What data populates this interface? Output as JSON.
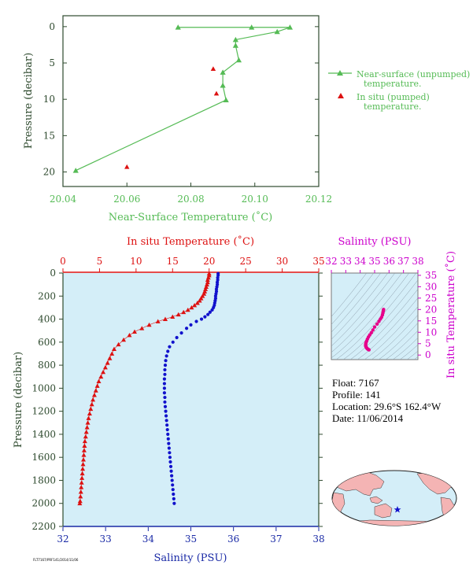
{
  "colors": {
    "near_surface": "#55bb55",
    "insitu": "#dd1111",
    "salinity": "#1111cc",
    "salinity_axis": "#1a2aa6",
    "magenta": "#cc00cc",
    "panel_bg": "#d4eef8",
    "axis_dark": "#2e4a2e",
    "land": "#f4b4b4",
    "ocean": "#d4eef8"
  },
  "float_info": {
    "float": "Float:  7167",
    "profile": "Profile:  141",
    "location": "Location:  29.6°S  162.4°W",
    "date": "Date:  11/06/2014"
  },
  "file_id": "FLT7167/PRF141/2014/11/06",
  "chart_data": [
    {
      "type": "line",
      "id": "near_surface",
      "xlabel": "Near-Surface Temperature (˚C)",
      "ylabel": "Pressure (decibar)",
      "xlim": [
        20.04,
        20.12
      ],
      "ylim": [
        22,
        -1.5
      ],
      "x_ticks": [
        "20.04",
        "20.06",
        "20.08",
        "20.10",
        "20.12"
      ],
      "y_ticks": [
        "0",
        "5",
        "10",
        "15",
        "20"
      ],
      "grid": false,
      "legend": [
        {
          "label_line1": "Near-surface (unpumped)",
          "label_line2": "temperature.",
          "marker": "triangle-line"
        },
        {
          "label_line1": "In situ (pumped)",
          "label_line2": "temperature.",
          "marker": "triangle"
        }
      ],
      "series": [
        {
          "name": "Near-surface (unpumped) temperature.",
          "points": [
            [
              20.076,
              0.1
            ],
            [
              20.099,
              0.1
            ],
            [
              20.111,
              0.1
            ],
            [
              20.107,
              0.7
            ],
            [
              20.094,
              1.8
            ],
            [
              20.094,
              2.6
            ],
            [
              20.095,
              4.6
            ],
            [
              20.09,
              6.3
            ],
            [
              20.09,
              8.1
            ],
            [
              20.091,
              10.1
            ],
            [
              20.044,
              19.8
            ]
          ]
        },
        {
          "name": "In situ (pumped) temperature.",
          "points": [
            [
              20.087,
              5.8
            ],
            [
              20.088,
              9.2
            ],
            [
              20.06,
              19.3
            ]
          ]
        }
      ]
    },
    {
      "type": "scatter",
      "id": "profile",
      "title_top": "In situ Temperature (˚C)",
      "xlabel_bottom": "Salinity (PSU)",
      "ylabel": "Pressure (decibar)",
      "temp_lim": [
        0,
        35
      ],
      "sal_lim": [
        32,
        38
      ],
      "ylim": [
        0,
        2200
      ],
      "temp_ticks": [
        "0",
        "5",
        "10",
        "15",
        "20",
        "25",
        "30",
        "35"
      ],
      "sal_ticks": [
        "32",
        "33",
        "34",
        "35",
        "36",
        "37",
        "38"
      ],
      "y_ticks": [
        "0",
        "200",
        "400",
        "600",
        "800",
        "1000",
        "1200",
        "1400",
        "1600",
        "1800",
        "2000",
        "2200"
      ],
      "temperature": {
        "name": "In situ Temperature",
        "points": [
          [
            20.0,
            5
          ],
          [
            20.0,
            20
          ],
          [
            19.9,
            40
          ],
          [
            19.8,
            60
          ],
          [
            19.8,
            80
          ],
          [
            19.7,
            100
          ],
          [
            19.6,
            120
          ],
          [
            19.5,
            140
          ],
          [
            19.4,
            160
          ],
          [
            19.3,
            180
          ],
          [
            19.1,
            200
          ],
          [
            18.9,
            220
          ],
          [
            18.7,
            240
          ],
          [
            18.4,
            260
          ],
          [
            18.0,
            280
          ],
          [
            17.6,
            300
          ],
          [
            17.1,
            320
          ],
          [
            16.5,
            340
          ],
          [
            15.8,
            360
          ],
          [
            15.0,
            380
          ],
          [
            14.0,
            400
          ],
          [
            13.0,
            420
          ],
          [
            11.8,
            450
          ],
          [
            10.8,
            480
          ],
          [
            9.8,
            510
          ],
          [
            9.1,
            540
          ],
          [
            8.3,
            580
          ],
          [
            7.6,
            620
          ],
          [
            7.0,
            660
          ],
          [
            6.7,
            700
          ],
          [
            6.4,
            740
          ],
          [
            6.1,
            780
          ],
          [
            5.8,
            820
          ],
          [
            5.5,
            860
          ],
          [
            5.2,
            900
          ],
          [
            4.9,
            940
          ],
          [
            4.7,
            980
          ],
          [
            4.5,
            1020
          ],
          [
            4.3,
            1060
          ],
          [
            4.1,
            1100
          ],
          [
            3.95,
            1140
          ],
          [
            3.8,
            1180
          ],
          [
            3.65,
            1220
          ],
          [
            3.5,
            1260
          ],
          [
            3.4,
            1300
          ],
          [
            3.3,
            1340
          ],
          [
            3.2,
            1380
          ],
          [
            3.1,
            1420
          ],
          [
            3.0,
            1460
          ],
          [
            2.95,
            1500
          ],
          [
            2.9,
            1540
          ],
          [
            2.85,
            1580
          ],
          [
            2.8,
            1620
          ],
          [
            2.75,
            1660
          ],
          [
            2.7,
            1700
          ],
          [
            2.65,
            1740
          ],
          [
            2.6,
            1780
          ],
          [
            2.55,
            1820
          ],
          [
            2.5,
            1860
          ],
          [
            2.45,
            1900
          ],
          [
            2.4,
            1940
          ],
          [
            2.35,
            1980
          ],
          [
            2.3,
            2000
          ]
        ]
      },
      "salinity": {
        "name": "Salinity",
        "points": [
          [
            35.64,
            5
          ],
          [
            35.64,
            20
          ],
          [
            35.63,
            40
          ],
          [
            35.63,
            60
          ],
          [
            35.62,
            80
          ],
          [
            35.62,
            100
          ],
          [
            35.61,
            120
          ],
          [
            35.6,
            140
          ],
          [
            35.6,
            160
          ],
          [
            35.59,
            180
          ],
          [
            35.58,
            200
          ],
          [
            35.58,
            220
          ],
          [
            35.57,
            240
          ],
          [
            35.56,
            260
          ],
          [
            35.55,
            280
          ],
          [
            35.53,
            300
          ],
          [
            35.5,
            320
          ],
          [
            35.45,
            340
          ],
          [
            35.4,
            360
          ],
          [
            35.33,
            380
          ],
          [
            35.25,
            400
          ],
          [
            35.13,
            420
          ],
          [
            35.0,
            450
          ],
          [
            34.9,
            480
          ],
          [
            34.78,
            520
          ],
          [
            34.67,
            560
          ],
          [
            34.58,
            600
          ],
          [
            34.5,
            640
          ],
          [
            34.46,
            680
          ],
          [
            34.43,
            720
          ],
          [
            34.41,
            760
          ],
          [
            34.4,
            800
          ],
          [
            34.39,
            840
          ],
          [
            34.39,
            880
          ],
          [
            34.38,
            920
          ],
          [
            34.38,
            960
          ],
          [
            34.38,
            1000
          ],
          [
            34.38,
            1040
          ],
          [
            34.39,
            1080
          ],
          [
            34.39,
            1120
          ],
          [
            34.4,
            1160
          ],
          [
            34.41,
            1200
          ],
          [
            34.42,
            1240
          ],
          [
            34.43,
            1280
          ],
          [
            34.44,
            1320
          ],
          [
            34.45,
            1360
          ],
          [
            34.46,
            1400
          ],
          [
            34.47,
            1440
          ],
          [
            34.48,
            1480
          ],
          [
            34.49,
            1520
          ],
          [
            34.5,
            1560
          ],
          [
            34.51,
            1600
          ],
          [
            34.52,
            1640
          ],
          [
            34.53,
            1680
          ],
          [
            34.54,
            1720
          ],
          [
            34.55,
            1760
          ],
          [
            34.56,
            1800
          ],
          [
            34.57,
            1840
          ],
          [
            34.58,
            1880
          ],
          [
            34.59,
            1920
          ],
          [
            34.6,
            1960
          ],
          [
            34.61,
            2000
          ]
        ]
      }
    },
    {
      "type": "scatter",
      "id": "ts_diagram",
      "title_top": "Salinity (PSU)",
      "ylabel": "In situ Temperature (˚C)",
      "sal_lim": [
        32,
        38
      ],
      "temp_lim": [
        -2,
        36
      ],
      "x_ticks": [
        "32",
        "33",
        "34",
        "35",
        "36",
        "37",
        "38"
      ],
      "y_ticks": [
        "0",
        "5",
        "10",
        "15",
        "20",
        "25",
        "30",
        "35"
      ],
      "series": [
        {
          "name": "T-S",
          "points": [
            [
              35.62,
              20.0
            ],
            [
              35.61,
              19.6
            ],
            [
              35.59,
              19.1
            ],
            [
              35.57,
              18.4
            ],
            [
              35.54,
              17.6
            ],
            [
              35.48,
              16.6
            ],
            [
              35.4,
              15.8
            ],
            [
              35.3,
              14.8
            ],
            [
              35.17,
              13.6
            ],
            [
              35.0,
              12.3
            ],
            [
              34.88,
              11.0
            ],
            [
              34.77,
              9.8
            ],
            [
              34.66,
              8.8
            ],
            [
              34.57,
              7.9
            ],
            [
              34.5,
              7.0
            ],
            [
              34.45,
              6.2
            ],
            [
              34.41,
              5.6
            ],
            [
              34.39,
              5.0
            ],
            [
              34.38,
              4.5
            ],
            [
              34.38,
              4.0
            ],
            [
              34.4,
              3.7
            ],
            [
              34.42,
              3.4
            ],
            [
              34.45,
              3.1
            ],
            [
              34.48,
              2.9
            ],
            [
              34.51,
              2.7
            ],
            [
              34.55,
              2.5
            ],
            [
              34.58,
              2.4
            ],
            [
              34.61,
              2.3
            ]
          ]
        }
      ]
    }
  ],
  "map": {
    "float_marker": "star"
  }
}
